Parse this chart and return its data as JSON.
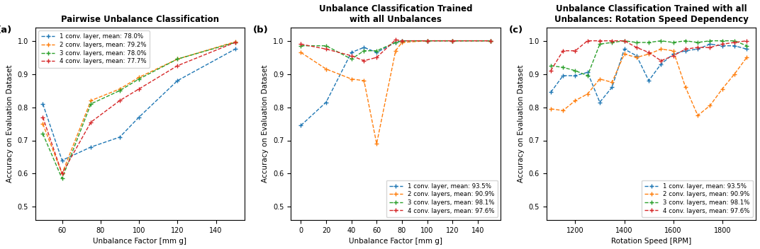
{
  "plot_a": {
    "title": "Pairwise Unbalance Classification",
    "xlabel": "Unbalance Factor [mm g]",
    "ylabel": "Accuracy on Evaluation Dataset",
    "xlim": [
      46,
      155
    ],
    "ylim": [
      0.46,
      1.04
    ],
    "label_tag": "(a)",
    "x": [
      50,
      60,
      75,
      90,
      100,
      120,
      150
    ],
    "xticks": [
      60,
      80,
      100,
      120,
      140
    ],
    "series": [
      {
        "label": "1 conv. layer, mean: 78.0%",
        "color": "#1f77b4",
        "y": [
          0.81,
          0.64,
          0.68,
          0.71,
          0.77,
          0.88,
          0.975
        ]
      },
      {
        "label": "2 conv. layers, mean: 79.2%",
        "color": "#ff7f0e",
        "y": [
          0.75,
          0.6,
          0.82,
          0.855,
          0.89,
          0.945,
          0.997
        ]
      },
      {
        "label": "3 conv. layers, mean: 78.0%",
        "color": "#2ca02c",
        "y": [
          0.72,
          0.585,
          0.81,
          0.85,
          0.885,
          0.945,
          0.995
        ]
      },
      {
        "label": "4 conv. layers, mean: 77.7%",
        "color": "#d62728",
        "y": [
          0.77,
          0.6,
          0.755,
          0.82,
          0.855,
          0.925,
          0.995
        ]
      }
    ],
    "legend_loc": "upper left"
  },
  "plot_b": {
    "title": "Unbalance Classification Trained\nwith all Unbalances",
    "xlabel": "Unbalance Factor [mm g]",
    "ylabel": "Accuracy on Evaluation Dataset",
    "xlim": [
      -8,
      158
    ],
    "ylim": [
      0.46,
      1.04
    ],
    "label_tag": "(b)",
    "x": [
      0,
      20,
      40,
      50,
      60,
      75,
      80,
      100,
      120,
      150
    ],
    "xticks": [
      0,
      20,
      40,
      60,
      80,
      100,
      120,
      140
    ],
    "series": [
      {
        "label": "1 conv. layer, mean: 93.5%",
        "color": "#1f77b4",
        "y": [
          0.745,
          0.815,
          0.965,
          0.98,
          0.965,
          0.995,
          1.0,
          1.0,
          1.0,
          1.0
        ]
      },
      {
        "label": "2 conv. layers, mean: 90.9%",
        "color": "#ff7f0e",
        "y": [
          0.965,
          0.915,
          0.885,
          0.88,
          0.69,
          0.97,
          0.995,
          1.0,
          1.0,
          1.0
        ]
      },
      {
        "label": "3 conv. layers, mean: 98.1%",
        "color": "#2ca02c",
        "y": [
          0.985,
          0.985,
          0.945,
          0.97,
          0.97,
          0.995,
          1.0,
          1.0,
          1.0,
          1.0
        ]
      },
      {
        "label": "4 conv. layers, mean: 97.6%",
        "color": "#d62728",
        "y": [
          0.99,
          0.975,
          0.955,
          0.94,
          0.95,
          1.003,
          1.0,
          1.0,
          1.0,
          1.0
        ]
      }
    ],
    "legend_loc": "lower right"
  },
  "plot_c": {
    "title": "Unbalance Classification Trained with all\nUnbalances: Rotation Speed Dependency",
    "xlabel": "Rotation Speed [RPM]",
    "ylabel": "Accuracy on Evaluation Dataset",
    "xlim": [
      1082,
      1938
    ],
    "ylim": [
      0.46,
      1.04
    ],
    "label_tag": "(c)",
    "x": [
      1100,
      1150,
      1200,
      1250,
      1300,
      1350,
      1400,
      1450,
      1500,
      1550,
      1600,
      1650,
      1700,
      1750,
      1800,
      1850,
      1900
    ],
    "xticks": [
      1200,
      1400,
      1600,
      1800
    ],
    "series": [
      {
        "label": "1 conv. layer, mean: 93.5%",
        "color": "#1f77b4",
        "y": [
          0.845,
          0.895,
          0.895,
          0.905,
          0.815,
          0.86,
          0.975,
          0.955,
          0.88,
          0.93,
          0.96,
          0.97,
          0.975,
          0.99,
          0.985,
          0.985,
          0.975
        ]
      },
      {
        "label": "2 conv. layers, mean: 90.9%",
        "color": "#ff7f0e",
        "y": [
          0.795,
          0.79,
          0.82,
          0.84,
          0.885,
          0.875,
          0.96,
          0.95,
          0.96,
          0.975,
          0.97,
          0.86,
          0.775,
          0.805,
          0.855,
          0.9,
          0.95
        ]
      },
      {
        "label": "3 conv. layers, mean: 98.1%",
        "color": "#2ca02c",
        "y": [
          0.925,
          0.92,
          0.91,
          0.895,
          0.99,
          0.995,
          1.0,
          0.995,
          0.995,
          1.0,
          0.995,
          1.0,
          0.995,
          1.0,
          1.0,
          1.0,
          0.985
        ]
      },
      {
        "label": "4 conv. layers, mean: 97.6%",
        "color": "#d62728",
        "y": [
          0.91,
          0.97,
          0.97,
          1.0,
          1.0,
          1.0,
          1.0,
          0.98,
          0.965,
          0.94,
          0.955,
          0.975,
          0.98,
          0.98,
          0.99,
          0.995,
          1.0
        ]
      }
    ],
    "legend_loc": "lower right"
  },
  "line_style": "--",
  "marker": "+",
  "markersize": 5,
  "linewidth": 1.0,
  "label_fontsize": 9.5,
  "title_fontsize": 8.5,
  "axis_label_fontsize": 7.5,
  "tick_fontsize": 7,
  "legend_fontsize": 6.2
}
